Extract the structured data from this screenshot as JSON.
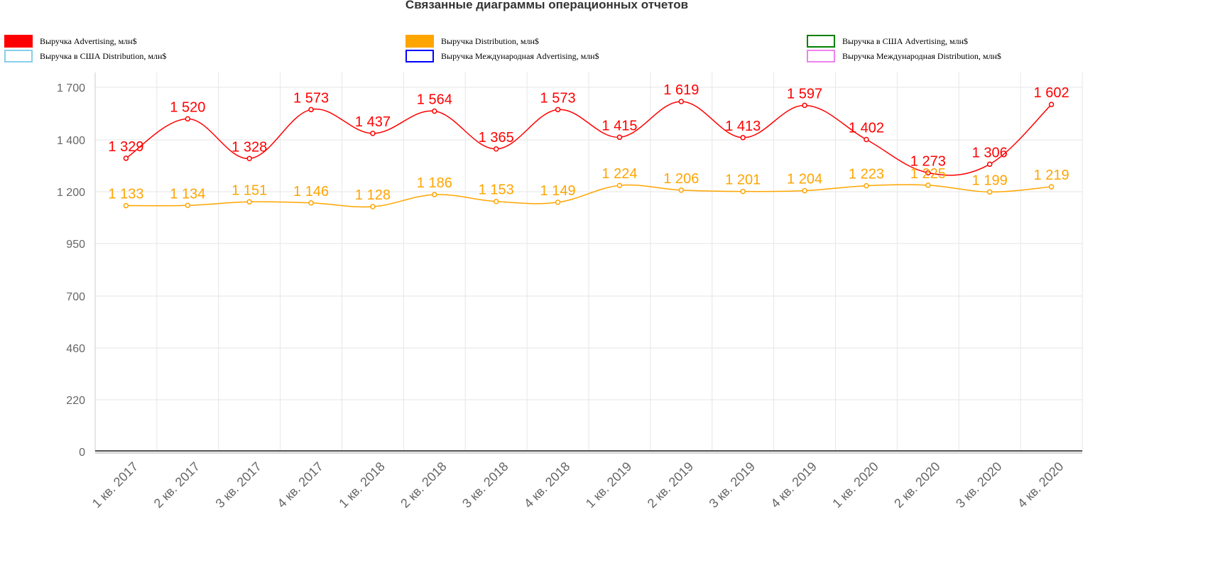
{
  "chart_data": {
    "type": "line",
    "title": "Связанные диаграммы операционных отчетов",
    "categories": [
      "1 кв. 2017",
      "2 кв. 2017",
      "3 кв. 2017",
      "4 кв. 2017",
      "1 кв. 2018",
      "2 кв. 2018",
      "3 кв. 2018",
      "4 кв. 2018",
      "1 кв. 2019",
      "2 кв. 2019",
      "3 кв. 2019",
      "4 кв. 2019",
      "1 кв. 2020",
      "2 кв. 2020",
      "3 кв. 2020",
      "4 кв. 2020"
    ],
    "y_ticks": [
      {
        "value": 0,
        "label": "0"
      },
      {
        "value": 220,
        "label": "220"
      },
      {
        "value": 460,
        "label": "460"
      },
      {
        "value": 700,
        "label": "700"
      },
      {
        "value": 950,
        "label": "950"
      },
      {
        "value": 1200,
        "label": "1 200"
      },
      {
        "value": 1400,
        "label": "1 400"
      },
      {
        "value": 1700,
        "label": "1 700"
      }
    ],
    "ylim": [
      0,
      1700
    ],
    "grid": true,
    "legend_position": "top",
    "legend": [
      {
        "name": "Выручка Advertising, млн$",
        "color": "#ff0000",
        "filled": true
      },
      {
        "name": "Выручка Distribution, млн$",
        "color": "#ffa500",
        "filled": true
      },
      {
        "name": "Выручка в США Advertising, млн$",
        "color": "#008000",
        "filled": false
      },
      {
        "name": "Выручка в США Distribution, млн$",
        "color": "#87ceeb",
        "filled": false
      },
      {
        "name": "Выручка Международная Advertising, млн$",
        "color": "#0000ff",
        "filled": false
      },
      {
        "name": "Выручка Международная Distribution, млн$",
        "color": "#ee82ee",
        "filled": false
      }
    ],
    "series": [
      {
        "name": "Выручка Advertising, млн$",
        "color": "#ff0000",
        "values": [
          1329,
          1520,
          1328,
          1573,
          1437,
          1564,
          1365,
          1573,
          1415,
          1619,
          1413,
          1597,
          1402,
          1273,
          1306,
          1602
        ],
        "labels": [
          "1 329",
          "1 520",
          "1 328",
          "1 573",
          "1 437",
          "1 564",
          "1 365",
          "1 573",
          "1 415",
          "1 619",
          "1 413",
          "1 597",
          "1 402",
          "1 273",
          "1 306",
          "1 602"
        ]
      },
      {
        "name": "Выручка Distribution, млн$",
        "color": "#ffa500",
        "values": [
          1133,
          1134,
          1151,
          1146,
          1128,
          1186,
          1153,
          1149,
          1224,
          1206,
          1201,
          1204,
          1223,
          1225,
          1199,
          1219
        ],
        "labels": [
          "1 133",
          "1 134",
          "1 151",
          "1 146",
          "1 128",
          "1 186",
          "1 153",
          "1 149",
          "1 224",
          "1 206",
          "1 201",
          "1 204",
          "1 223",
          "1 225",
          "1 199",
          "1 219"
        ]
      }
    ]
  }
}
